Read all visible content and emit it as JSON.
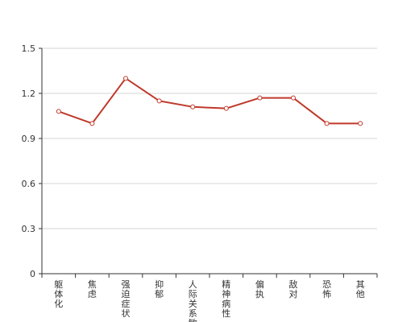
{
  "chart_data": {
    "type": "line",
    "categories": [
      "躯体化",
      "焦虑",
      "强迫症状",
      "抑郁",
      "人际关系敏感",
      "精神病性",
      "偏执",
      "敌对",
      "恐怖",
      "其他"
    ],
    "series": [
      {
        "values": [
          1.08,
          1.0,
          1.3,
          1.15,
          1.11,
          1.1,
          1.17,
          1.17,
          1.0,
          1.0
        ]
      }
    ],
    "ylim": [
      0,
      1.5
    ],
    "yticks": [
      "0",
      "0.3",
      "0.6",
      "0.9",
      "1.2",
      "1.5"
    ],
    "grid": true,
    "line_color": "#c0392b",
    "marker_fill": "#ffffff",
    "title": "",
    "xlabel": "",
    "ylabel": ""
  }
}
